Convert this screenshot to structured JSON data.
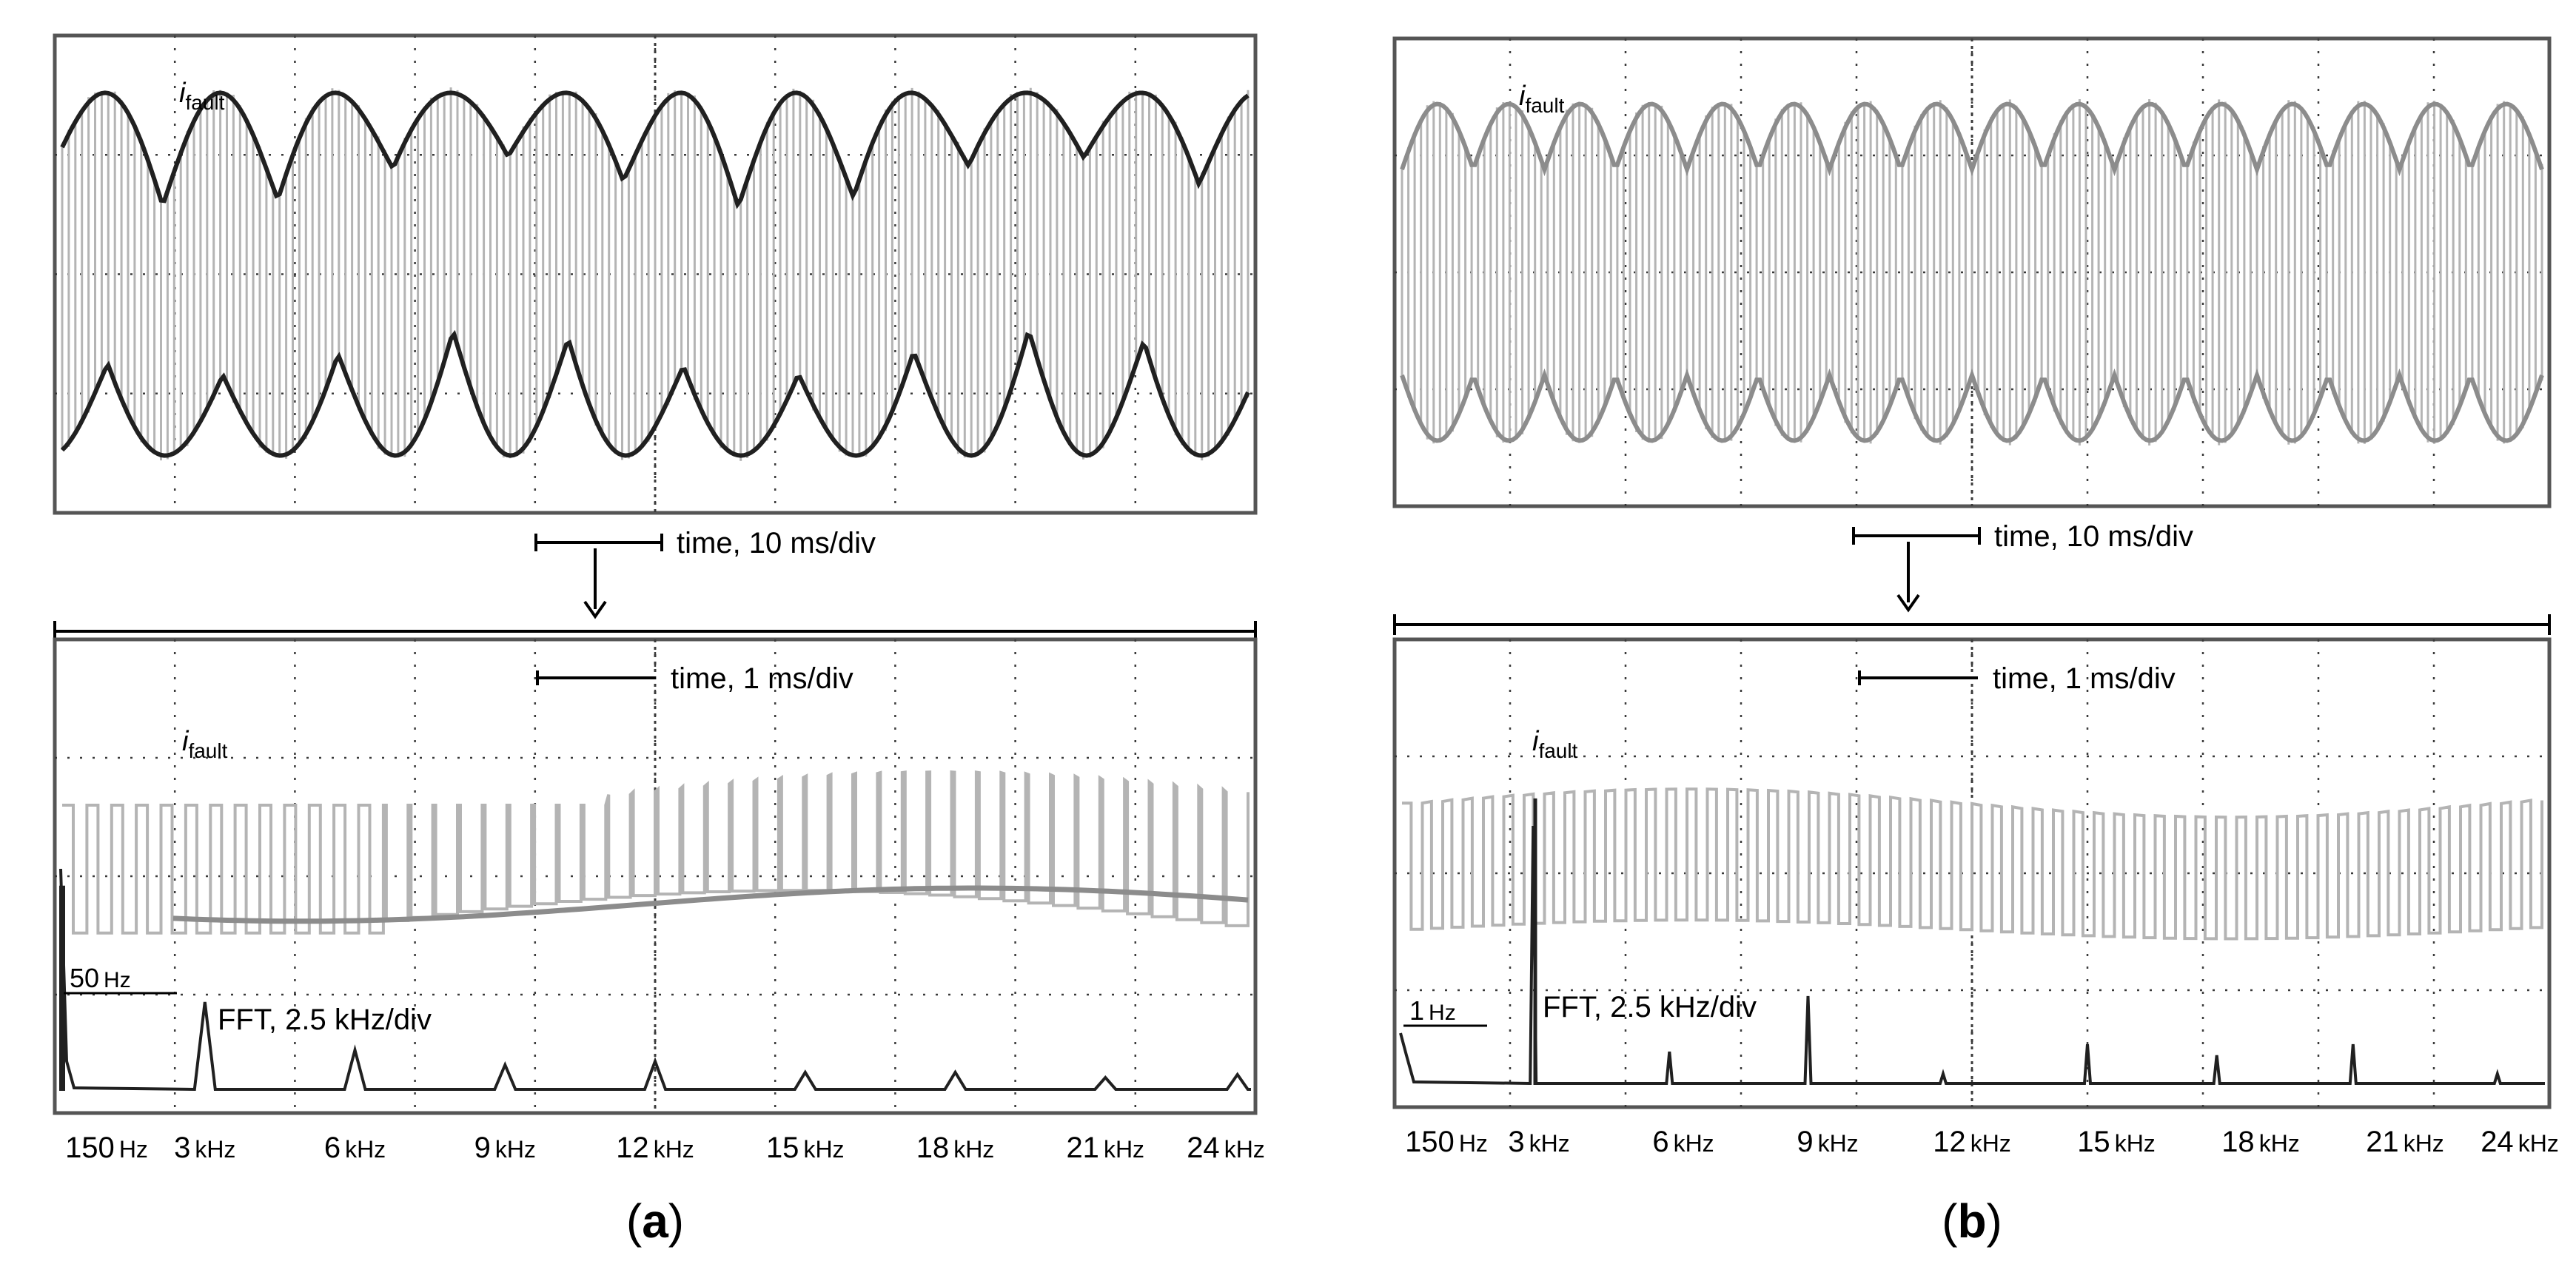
{
  "figure": {
    "panels": [
      {
        "id": "a",
        "caption": "a",
        "top_scope": {
          "signal_label": {
            "main": "i",
            "sub": "fault"
          },
          "time_scale": "time, 10 ms/div"
        },
        "bottom_scope": {
          "signal_label": {
            "main": "i",
            "sub": "fault"
          },
          "time_scale": "time, 1 ms/div",
          "fft_label": "FFT, 2.5 kHz/div",
          "marker": {
            "value": "50",
            "unit": "Hz"
          },
          "freq_ticks": [
            {
              "num": "150",
              "unit": "Hz"
            },
            {
              "num": "3",
              "unit": "kHz"
            },
            {
              "num": "6",
              "unit": "kHz"
            },
            {
              "num": "9",
              "unit": "kHz"
            },
            {
              "num": "12",
              "unit": "kHz"
            },
            {
              "num": "15",
              "unit": "kHz"
            },
            {
              "num": "18",
              "unit": "kHz"
            },
            {
              "num": "21",
              "unit": "kHz"
            },
            {
              "num": "24",
              "unit": "kHz"
            }
          ]
        }
      },
      {
        "id": "b",
        "caption": "b",
        "top_scope": {
          "signal_label": {
            "main": "i",
            "sub": "fault"
          },
          "time_scale": "time, 10 ms/div"
        },
        "bottom_scope": {
          "signal_label": {
            "main": "i",
            "sub": "fault"
          },
          "time_scale": "time, 1 ms/div",
          "fft_label": "FFT, 2.5 kHz/div",
          "marker": {
            "value": "1",
            "unit": "Hz"
          },
          "freq_ticks": [
            {
              "num": "150",
              "unit": "Hz"
            },
            {
              "num": "3",
              "unit": "kHz"
            },
            {
              "num": "6",
              "unit": "kHz"
            },
            {
              "num": "9",
              "unit": "kHz"
            },
            {
              "num": "12",
              "unit": "kHz"
            },
            {
              "num": "15",
              "unit": "kHz"
            },
            {
              "num": "18",
              "unit": "kHz"
            },
            {
              "num": "21",
              "unit": "kHz"
            },
            {
              "num": "24",
              "unit": "kHz"
            }
          ]
        }
      }
    ]
  },
  "colors": {
    "trace_light": "#b4b4b4",
    "trace_mid": "#8c8c8c",
    "envelope": "#202020",
    "frame": "#555555",
    "grid_dots": "#3a3a3a",
    "text": "#000000"
  }
}
